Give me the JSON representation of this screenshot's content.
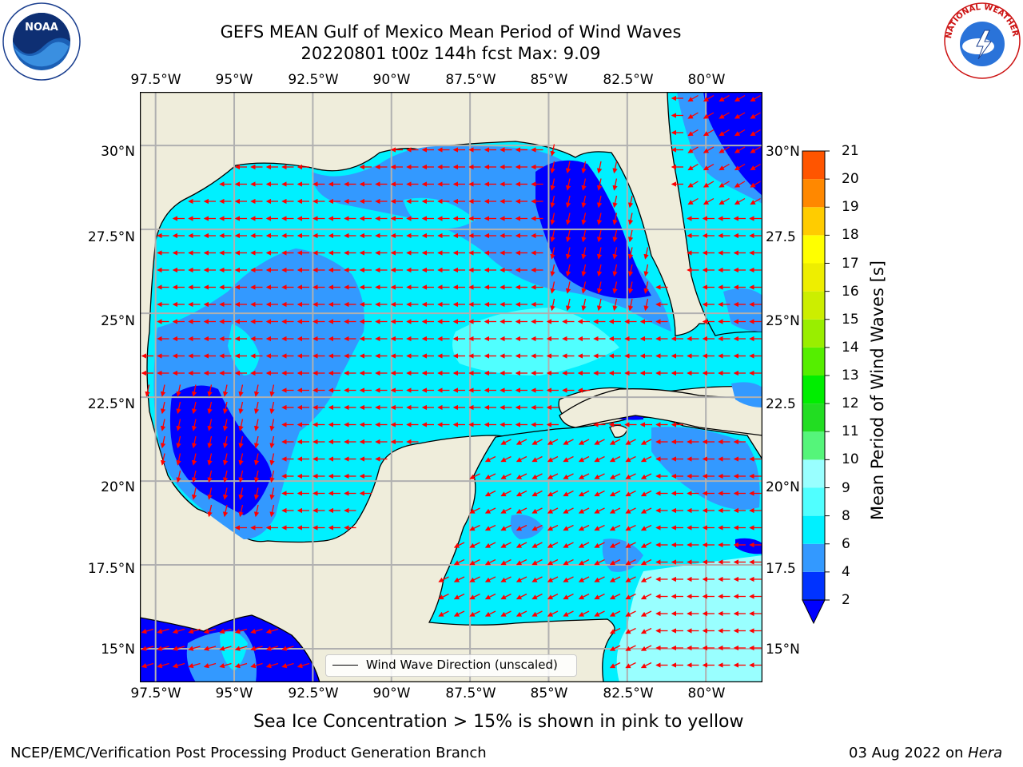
{
  "title": {
    "line1": "GEFS MEAN Gulf of Mexico Mean Period of Wind Waves",
    "line2": "20220801 t00z 144h fcst   Max: 9.09"
  },
  "map": {
    "lon_ticks": [
      "97.5°W",
      "95°W",
      "92.5°W",
      "90°W",
      "87.5°W",
      "85°W",
      "82.5°W",
      "80°W"
    ],
    "lat_ticks_left": [
      "30°N",
      "27.5°N",
      "25°N",
      "22.5°N",
      "20°N",
      "17.5°N",
      "15°N"
    ],
    "lat_ticks_right": [
      "30°N",
      "27.5",
      "25°N",
      "22.5",
      "20°N",
      "17.5",
      "15°N"
    ],
    "lon_range": [
      -98,
      -78.2
    ],
    "lat_range": [
      14,
      31.6
    ],
    "grid": true,
    "land_color": "#efeddb",
    "arrow_color": "#ff0000",
    "legend_label": "Wind Wave Direction (unscaled)"
  },
  "colorbar": {
    "label": "Mean Period of Wind Waves [s]",
    "ticks": [
      "21",
      "20",
      "19",
      "18",
      "17",
      "16",
      "15",
      "14",
      "13",
      "12",
      "11",
      "10",
      "9",
      "8",
      "6",
      "4",
      "2"
    ],
    "levels": [
      2,
      4,
      6,
      8,
      9,
      10,
      11,
      12,
      13,
      14,
      15,
      16,
      17,
      18,
      19,
      20,
      21
    ],
    "colors": [
      "#0033ff",
      "#3399ff",
      "#00f0ff",
      "#50ffff",
      "#99ffff",
      "#55f57a",
      "#22dd22",
      "#00ee00",
      "#55ee00",
      "#99ee00",
      "#ccee00",
      "#eeee00",
      "#ffff00",
      "#ffcc00",
      "#ff8800",
      "#ff5500",
      "#ff2200",
      "#ff0000"
    ],
    "extend_min_color": "#0000ff"
  },
  "notes": {
    "sea_ice": "Sea Ice Concentration > 15% is shown in pink to yellow"
  },
  "footer": {
    "left": "NCEP/EMC/Verification Post Processing Product Generation Branch",
    "date": "03 Aug 2022 on ",
    "machine": "Hera"
  },
  "logos": {
    "noaa_text": "NOAA",
    "nws_text": "NATIONAL WEATHER SERVICE"
  }
}
